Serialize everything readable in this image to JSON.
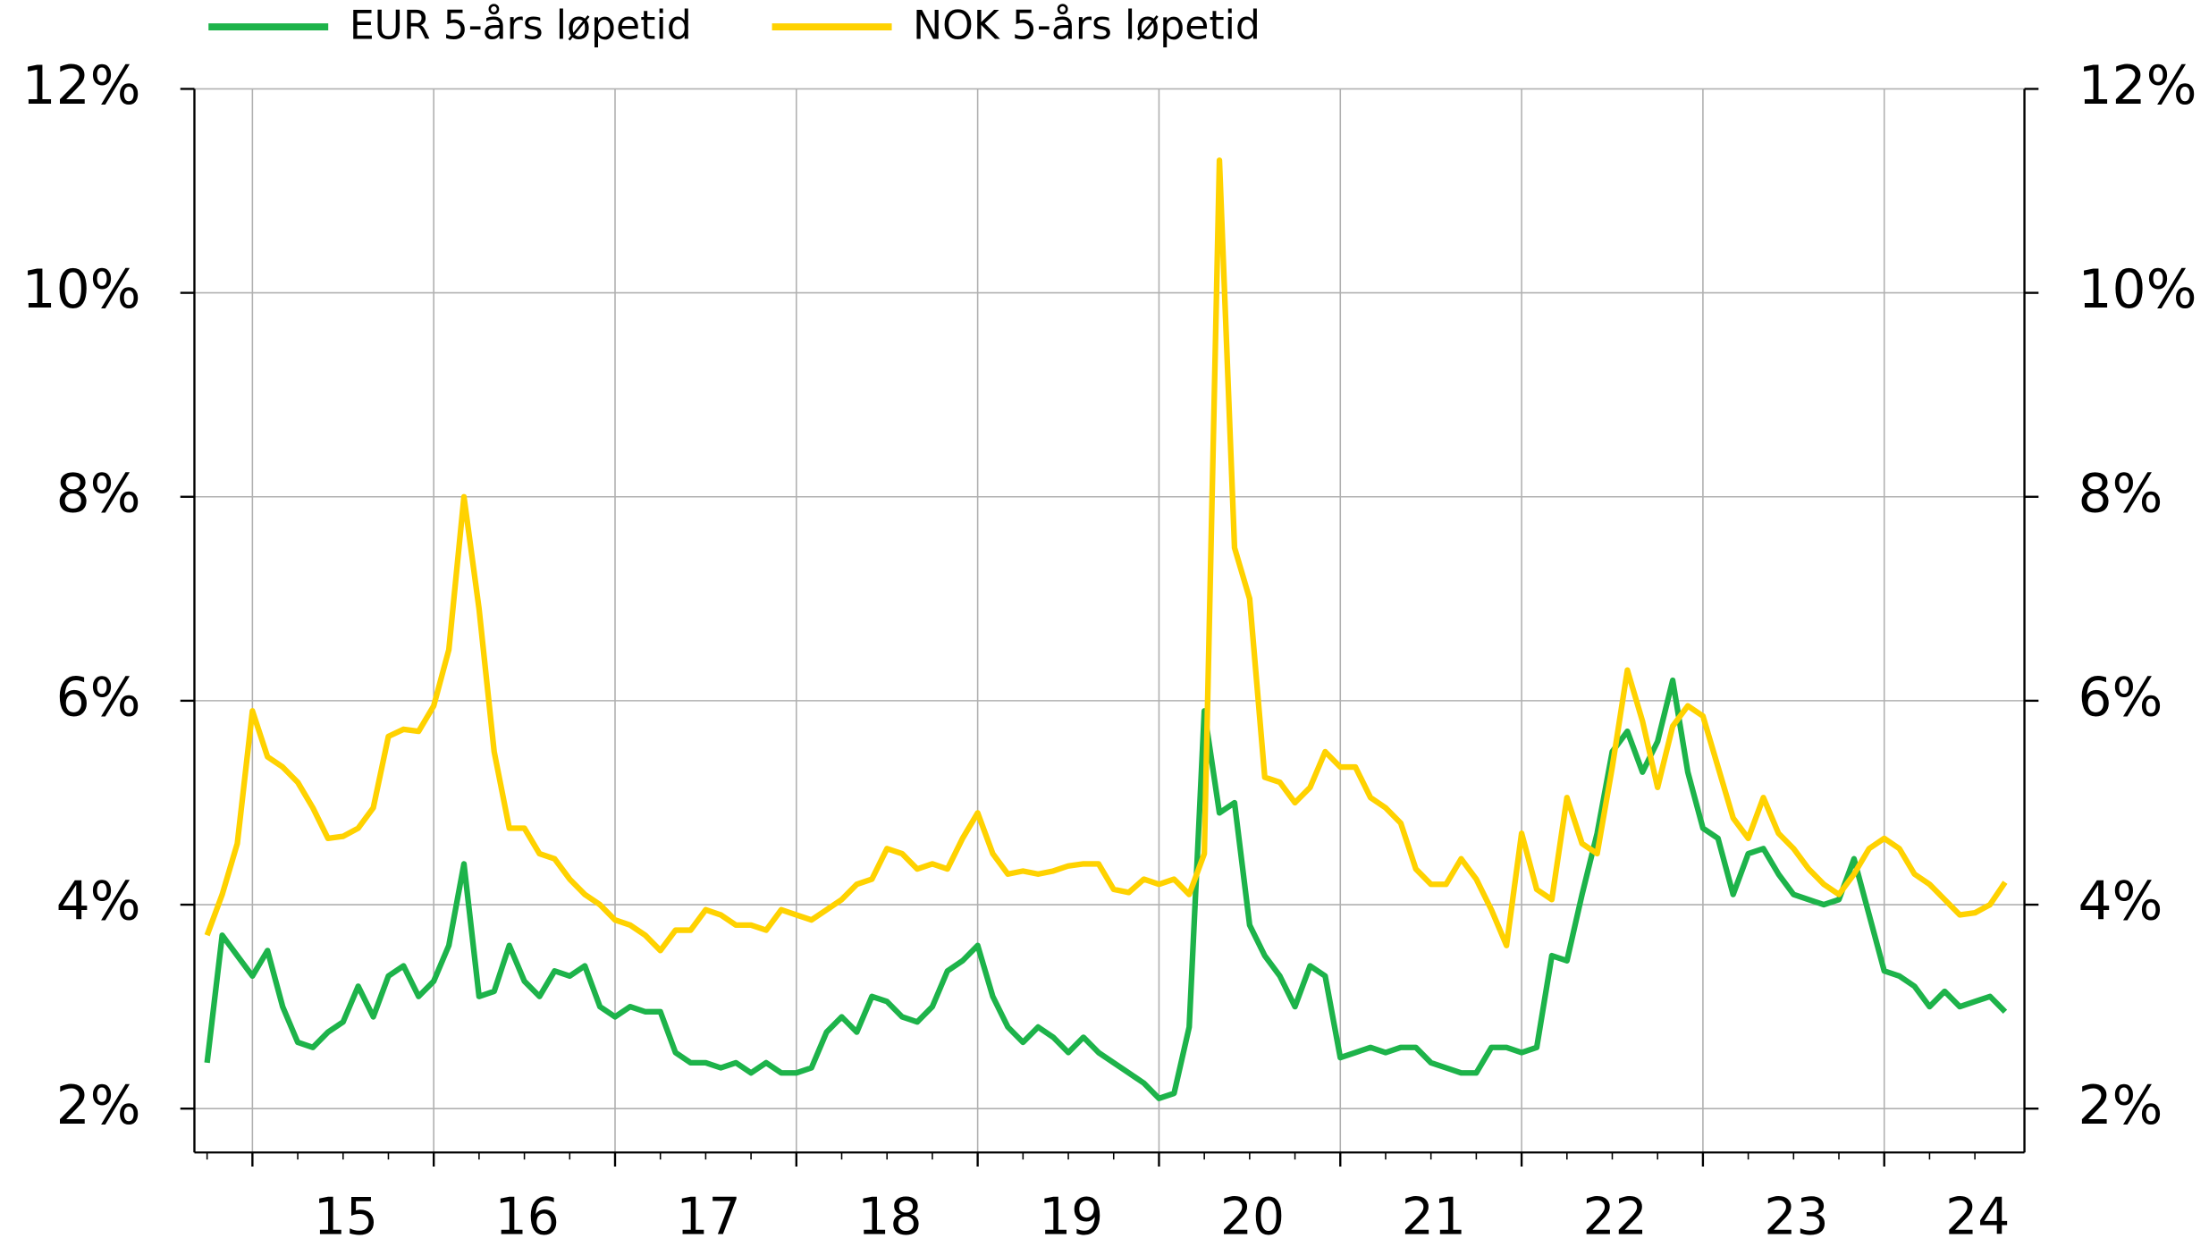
{
  "chart_data": {
    "type": "line",
    "categories": [
      null,
      null,
      null,
      null,
      null,
      null,
      null,
      null,
      null,
      "15",
      null,
      null,
      null,
      null,
      null,
      null,
      null,
      null,
      null,
      null,
      null,
      "16",
      null,
      null,
      null,
      null,
      null,
      null,
      null,
      null,
      null,
      null,
      null,
      "17",
      null,
      null,
      null,
      null,
      null,
      null,
      null,
      null,
      null,
      null,
      null,
      "18",
      null,
      null,
      null,
      null,
      null,
      null,
      null,
      null,
      null,
      null,
      null,
      "19",
      null,
      null,
      null,
      null,
      null,
      null,
      null,
      null,
      null,
      null,
      null,
      "20",
      null,
      null,
      null,
      null,
      null,
      null,
      null,
      null,
      null,
      null,
      null,
      "21",
      null,
      null,
      null,
      null,
      null,
      null,
      null,
      null,
      null,
      null,
      null,
      "22",
      null,
      null,
      null,
      null,
      null,
      null,
      null,
      null,
      null,
      null,
      null,
      "23",
      null,
      null,
      null,
      null,
      null,
      null,
      null,
      null,
      null,
      null,
      null,
      "24",
      null,
      null
    ],
    "series": [
      {
        "name": "EUR 5-års løpetid",
        "color": "#1db34a",
        "values": [
          2.45,
          3.7,
          3.5,
          3.3,
          3.55,
          3.0,
          2.65,
          2.6,
          2.75,
          2.85,
          3.2,
          2.9,
          3.3,
          3.4,
          3.1,
          3.25,
          3.6,
          4.4,
          3.1,
          3.15,
          3.6,
          3.25,
          3.1,
          3.35,
          3.3,
          3.4,
          3.0,
          2.9,
          3.0,
          2.95,
          2.95,
          2.55,
          2.45,
          2.45,
          2.4,
          2.45,
          2.35,
          2.45,
          2.35,
          2.35,
          2.4,
          2.75,
          2.9,
          2.75,
          3.1,
          3.05,
          2.9,
          2.85,
          3.0,
          3.35,
          3.45,
          3.6,
          3.1,
          2.8,
          2.65,
          2.8,
          2.7,
          2.55,
          2.7,
          2.55,
          2.45,
          2.35,
          2.25,
          2.1,
          2.15,
          2.8,
          5.9,
          4.9,
          5.0,
          3.8,
          3.5,
          3.3,
          3.0,
          3.4,
          3.3,
          2.5,
          2.55,
          2.6,
          2.55,
          2.6,
          2.6,
          2.45,
          2.4,
          2.35,
          2.35,
          2.6,
          2.6,
          2.55,
          2.6,
          3.5,
          3.45,
          4.1,
          4.7,
          5.5,
          5.7,
          5.3,
          5.6,
          6.2,
          5.3,
          4.75,
          4.65,
          4.1,
          4.5,
          4.55,
          4.3,
          4.1,
          4.05,
          4.0,
          4.05,
          4.45,
          3.9,
          3.35,
          3.3,
          3.2,
          3.0,
          3.15,
          3.0,
          3.05,
          3.1,
          2.95
        ]
      },
      {
        "name": "NOK 5-års løpetid",
        "color": "#ffd200",
        "values": [
          3.7,
          4.1,
          4.6,
          5.9,
          5.45,
          5.35,
          5.2,
          4.95,
          4.65,
          4.67,
          4.75,
          4.95,
          5.65,
          5.72,
          5.7,
          5.95,
          6.5,
          8.0,
          6.9,
          5.5,
          4.75,
          4.75,
          4.5,
          4.45,
          4.25,
          4.1,
          4.0,
          3.85,
          3.8,
          3.7,
          3.55,
          3.75,
          3.75,
          3.95,
          3.9,
          3.8,
          3.8,
          3.75,
          3.95,
          3.9,
          3.85,
          3.95,
          4.05,
          4.2,
          4.25,
          4.55,
          4.5,
          4.35,
          4.4,
          4.35,
          4.65,
          4.9,
          4.5,
          4.3,
          4.33,
          4.3,
          4.33,
          4.38,
          4.4,
          4.4,
          4.15,
          4.12,
          4.25,
          4.2,
          4.25,
          4.1,
          4.5,
          11.3,
          7.5,
          7.0,
          5.25,
          5.2,
          5.0,
          5.15,
          5.5,
          5.35,
          5.35,
          5.05,
          4.95,
          4.8,
          4.35,
          4.2,
          4.2,
          4.45,
          4.25,
          3.95,
          3.6,
          4.7,
          4.15,
          4.05,
          5.05,
          4.6,
          4.5,
          5.35,
          6.3,
          5.8,
          5.15,
          5.75,
          5.95,
          5.85,
          5.35,
          4.85,
          4.65,
          5.05,
          4.7,
          4.55,
          4.35,
          4.2,
          4.1,
          4.3,
          4.55,
          4.65,
          4.55,
          4.3,
          4.2,
          4.05,
          3.9,
          3.92,
          4.0,
          4.22
        ]
      }
    ],
    "ylim": [
      1.57,
      12
    ],
    "yticks": [
      {
        "value": 2,
        "label": "2%"
      },
      {
        "value": 4,
        "label": "4%"
      },
      {
        "value": 6,
        "label": "6%"
      },
      {
        "value": 8,
        "label": "8%"
      },
      {
        "value": 10,
        "label": "10%"
      },
      {
        "value": 12,
        "label": "12%"
      }
    ],
    "y2lim": [
      1.57,
      12
    ],
    "y2ticks": [
      {
        "value": 2,
        "label": "2%"
      },
      {
        "value": 4,
        "label": "4%"
      },
      {
        "value": 6,
        "label": "6%"
      },
      {
        "value": 8,
        "label": "8%"
      },
      {
        "value": 10,
        "label": "10%"
      },
      {
        "value": 12,
        "label": "12%"
      }
    ],
    "grid": true
  }
}
